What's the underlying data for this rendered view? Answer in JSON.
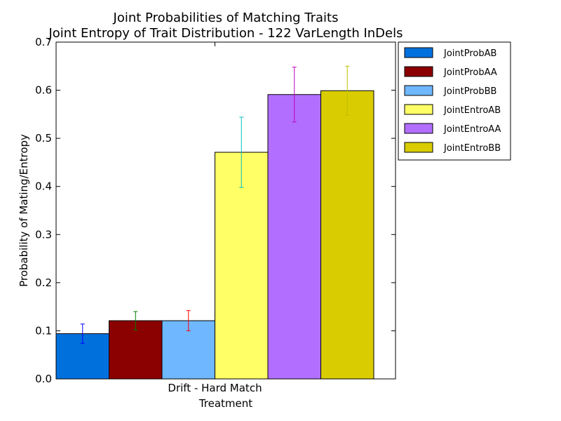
{
  "chart_data": {
    "type": "bar",
    "title_line1": "Joint Probabilities of Matching Traits",
    "title_line2": "Joint Entropy of Trait Distribution - 122 VarLength InDels",
    "xlabel": "Treatment",
    "ylabel": "Probability of Mating/Entropy",
    "categories": [
      "Drift - Hard Match"
    ],
    "ylim": [
      0,
      0.7
    ],
    "yticks": [
      "0.0",
      "0.1",
      "0.2",
      "0.3",
      "0.4",
      "0.5",
      "0.6",
      "0.7"
    ],
    "grid": false,
    "legend_position": "outside-right-top",
    "series": [
      {
        "name": "JointProbAB",
        "values": [
          0.094
        ],
        "error": [
          0.02
        ],
        "color": "#0070dd",
        "error_color": "#0000ff"
      },
      {
        "name": "JointProbAA",
        "values": [
          0.121
        ],
        "error": [
          0.019
        ],
        "color": "#8b0000",
        "error_color": "#008000"
      },
      {
        "name": "JointProbBB",
        "values": [
          0.121
        ],
        "error": [
          0.021
        ],
        "color": "#6fb7ff",
        "error_color": "#ff0000"
      },
      {
        "name": "JointEntroAB",
        "values": [
          0.471
        ],
        "error": [
          0.073
        ],
        "color": "#ffff66",
        "error_color": "#00bfbf"
      },
      {
        "name": "JointEntroAA",
        "values": [
          0.591
        ],
        "error": [
          0.057
        ],
        "color": "#b26fff",
        "error_color": "#bf00bf"
      },
      {
        "name": "JointEntroBB",
        "values": [
          0.599
        ],
        "error": [
          0.051
        ],
        "color": "#d9cc00",
        "error_color": "#bfbf00"
      }
    ]
  }
}
